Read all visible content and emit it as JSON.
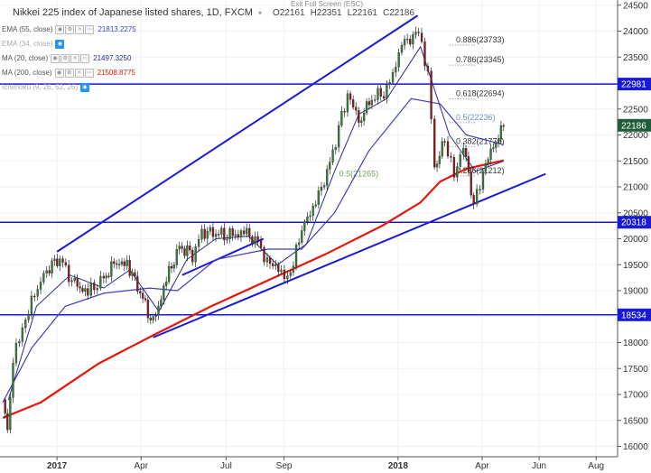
{
  "header": {
    "title": "Nikkei 225 index of Japanese listed shares, 1D, FXCM",
    "ohlc": [
      {
        "label": "O",
        "value": "22161"
      },
      {
        "label": "H",
        "value": "22351"
      },
      {
        "label": "L",
        "value": "22161"
      },
      {
        "label": "C",
        "value": "22186"
      }
    ],
    "exit_fullscreen": "Exit Full Screen (ESC)"
  },
  "indicators": [
    {
      "name": "EMA (55, close)",
      "value": "21813.2275",
      "color": "#3f3fbf",
      "icon": "eye-off-icon"
    },
    {
      "name": "EMA (34, close)",
      "value": "",
      "color": "#888888",
      "icon": "eye-icon"
    },
    {
      "name": "MA (20, close)",
      "value": "21497.3250",
      "color": "#2b2b8f",
      "icon": "settings-icon"
    },
    {
      "name": "MA (200, close)",
      "value": "21508.8775",
      "color": "#e3170a",
      "icon": "settings-icon"
    },
    {
      "name": "Ichimoku (9, 26, 52, 26)",
      "value": "",
      "color": "#888888",
      "icon": "eye-icon"
    }
  ],
  "chart_data": {
    "type": "line",
    "ylim": [
      15800,
      24600
    ],
    "y_ticks": [
      16000,
      16500,
      17000,
      17500,
      18000,
      18500,
      19000,
      19500,
      20000,
      20500,
      21000,
      21500,
      22000,
      22500,
      23000,
      23500,
      24000,
      24500
    ],
    "x_ticks": [
      "2017",
      "Apr",
      "Jul",
      "Sep",
      "2018",
      "Apr",
      "Jun",
      "Aug"
    ],
    "price_series": [
      {
        "d": "2016-11-04",
        "v": 16900
      },
      {
        "d": "2016-11-09",
        "v": 16250
      },
      {
        "d": "2016-11-15",
        "v": 17600
      },
      {
        "d": "2016-11-25",
        "v": 18350
      },
      {
        "d": "2016-12-08",
        "v": 18900
      },
      {
        "d": "2016-12-21",
        "v": 19450
      },
      {
        "d": "2017-01-04",
        "v": 19600
      },
      {
        "d": "2017-01-20",
        "v": 19100
      },
      {
        "d": "2017-02-03",
        "v": 18950
      },
      {
        "d": "2017-02-20",
        "v": 19250
      },
      {
        "d": "2017-03-03",
        "v": 19500
      },
      {
        "d": "2017-03-17",
        "v": 19550
      },
      {
        "d": "2017-03-31",
        "v": 18950
      },
      {
        "d": "2017-04-14",
        "v": 18350
      },
      {
        "d": "2017-04-28",
        "v": 19200
      },
      {
        "d": "2017-05-12",
        "v": 19850
      },
      {
        "d": "2017-05-26",
        "v": 19700
      },
      {
        "d": "2017-06-05",
        "v": 20150
      },
      {
        "d": "2017-06-20",
        "v": 20100
      },
      {
        "d": "2017-07-05",
        "v": 20050
      },
      {
        "d": "2017-07-20",
        "v": 20100
      },
      {
        "d": "2017-08-04",
        "v": 19950
      },
      {
        "d": "2017-08-14",
        "v": 19550
      },
      {
        "d": "2017-08-29",
        "v": 19400
      },
      {
        "d": "2017-09-08",
        "v": 19250
      },
      {
        "d": "2017-09-20",
        "v": 20250
      },
      {
        "d": "2017-10-05",
        "v": 20650
      },
      {
        "d": "2017-10-20",
        "v": 21450
      },
      {
        "d": "2017-11-08",
        "v": 22800
      },
      {
        "d": "2017-11-20",
        "v": 22300
      },
      {
        "d": "2017-12-04",
        "v": 22700
      },
      {
        "d": "2017-12-20",
        "v": 22850
      },
      {
        "d": "2018-01-05",
        "v": 23700
      },
      {
        "d": "2018-01-23",
        "v": 24000
      },
      {
        "d": "2018-02-02",
        "v": 23200
      },
      {
        "d": "2018-02-09",
        "v": 21400
      },
      {
        "d": "2018-02-20",
        "v": 21900
      },
      {
        "d": "2018-03-02",
        "v": 21200
      },
      {
        "d": "2018-03-12",
        "v": 21800
      },
      {
        "d": "2018-03-23",
        "v": 20650
      },
      {
        "d": "2018-04-02",
        "v": 21300
      },
      {
        "d": "2018-04-13",
        "v": 21800
      },
      {
        "d": "2018-04-24",
        "v": 22186
      }
    ],
    "ema55": [
      {
        "d": "2016-11-04",
        "v": 16850
      },
      {
        "d": "2016-12-05",
        "v": 17900
      },
      {
        "d": "2017-01-10",
        "v": 18700
      },
      {
        "d": "2017-02-20",
        "v": 18950
      },
      {
        "d": "2017-04-10",
        "v": 19050
      },
      {
        "d": "2017-05-10",
        "v": 19000
      },
      {
        "d": "2017-06-20",
        "v": 19600
      },
      {
        "d": "2017-08-15",
        "v": 19800
      },
      {
        "d": "2017-09-20",
        "v": 19800
      },
      {
        "d": "2017-10-25",
        "v": 20500
      },
      {
        "d": "2017-12-01",
        "v": 21700
      },
      {
        "d": "2018-01-15",
        "v": 22700
      },
      {
        "d": "2018-02-15",
        "v": 22600
      },
      {
        "d": "2018-03-15",
        "v": 22000
      },
      {
        "d": "2018-04-24",
        "v": 21813
      }
    ],
    "ma20": [
      {
        "d": "2016-11-10",
        "v": 16900
      },
      {
        "d": "2016-12-10",
        "v": 18700
      },
      {
        "d": "2017-01-15",
        "v": 19300
      },
      {
        "d": "2017-02-20",
        "v": 19050
      },
      {
        "d": "2017-03-20",
        "v": 19400
      },
      {
        "d": "2017-04-20",
        "v": 18600
      },
      {
        "d": "2017-05-20",
        "v": 19600
      },
      {
        "d": "2017-06-20",
        "v": 20000
      },
      {
        "d": "2017-07-25",
        "v": 20050
      },
      {
        "d": "2017-08-25",
        "v": 19500
      },
      {
        "d": "2017-09-25",
        "v": 19900
      },
      {
        "d": "2017-10-25",
        "v": 21300
      },
      {
        "d": "2017-11-20",
        "v": 22400
      },
      {
        "d": "2017-12-20",
        "v": 22700
      },
      {
        "d": "2018-01-25",
        "v": 23700
      },
      {
        "d": "2018-02-25",
        "v": 22000
      },
      {
        "d": "2018-03-25",
        "v": 21300
      },
      {
        "d": "2018-04-24",
        "v": 21497
      }
    ],
    "ma200": [
      {
        "d": "2016-11-04",
        "v": 16550
      },
      {
        "d": "2016-12-15",
        "v": 16850
      },
      {
        "d": "2017-02-15",
        "v": 17600
      },
      {
        "d": "2017-04-15",
        "v": 18150
      },
      {
        "d": "2017-06-15",
        "v": 18700
      },
      {
        "d": "2017-08-15",
        "v": 19200
      },
      {
        "d": "2017-10-15",
        "v": 19700
      },
      {
        "d": "2017-12-15",
        "v": 20250
      },
      {
        "d": "2018-01-25",
        "v": 20700
      },
      {
        "d": "2018-02-15",
        "v": 21100
      },
      {
        "d": "2018-03-15",
        "v": 21350
      },
      {
        "d": "2018-04-24",
        "v": 21509
      }
    ],
    "horizontal_levels": [
      {
        "value": 22981,
        "label": "22981"
      },
      {
        "value": 20318,
        "label": "20318"
      },
      {
        "value": 18534,
        "label": "18534"
      }
    ],
    "last_price_label": "22186",
    "trendlines": [
      {
        "from": {
          "d": "2017-01-01",
          "v": 19750
        },
        "to": {
          "d": "2018-01-22",
          "v": 24300
        }
      },
      {
        "from": {
          "d": "2017-04-14",
          "v": 18100
        },
        "to": {
          "d": "2018-06-08",
          "v": 21250
        }
      },
      {
        "from": {
          "d": "2017-05-15",
          "v": 19300
        },
        "to": {
          "d": "2017-08-10",
          "v": 20000
        }
      }
    ],
    "fib_levels": [
      {
        "label": "0.886(23733)",
        "value": 23733
      },
      {
        "label": "0.786(23345)",
        "value": 23345
      },
      {
        "label": "0.618(22694)",
        "value": 22694
      },
      {
        "label": "0.5(22236)",
        "value": 22236
      },
      {
        "label": "0.382(21778)",
        "value": 21778
      },
      {
        "label": "0.236(21212)",
        "value": 21212
      }
    ],
    "fib_chart_label": "0.5(21265)"
  }
}
